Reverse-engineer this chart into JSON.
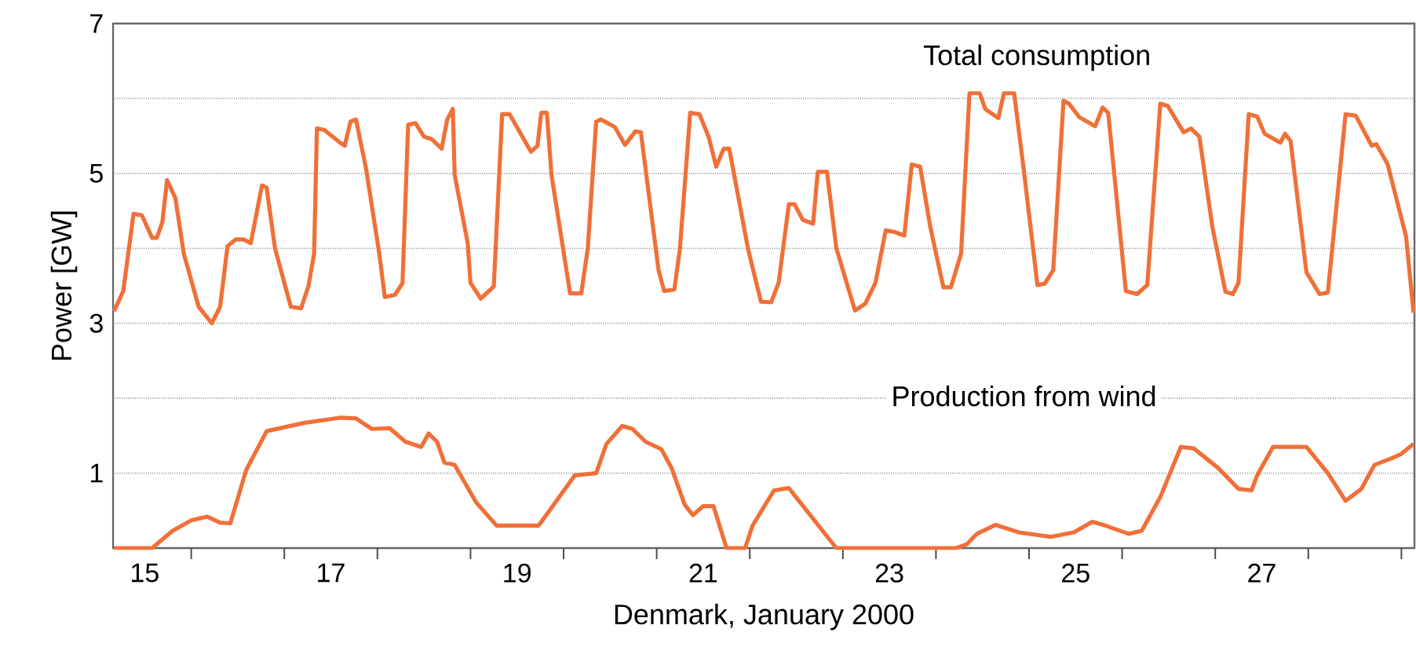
{
  "chart_data": {
    "type": "line",
    "xlabel": "Denmark, January 2000",
    "ylabel": "Power [GW]",
    "xlim": [
      14.66,
      28.64
    ],
    "ylim": [
      0,
      7
    ],
    "xticks": [
      15,
      {
        "value": 15.5,
        "label": null
      },
      {
        "value": 16.5,
        "label": null
      },
      17,
      {
        "value": 17.5,
        "label": null
      },
      {
        "value": 18.5,
        "label": null
      },
      19,
      {
        "value": 19.5,
        "label": null
      },
      {
        "value": 20.5,
        "label": null
      },
      21,
      {
        "value": 21.5,
        "label": null
      },
      {
        "value": 22.5,
        "label": null
      },
      23,
      {
        "value": 23.5,
        "label": null
      },
      {
        "value": 24.5,
        "label": null
      },
      25,
      {
        "value": 25.5,
        "label": null
      },
      {
        "value": 26.5,
        "label": null
      },
      27,
      {
        "value": 27.5,
        "label": null
      },
      {
        "value": 28.5,
        "label": null
      }
    ],
    "yticks": [
      1,
      {
        "value": 2,
        "label": null
      },
      3,
      {
        "value": 4,
        "label": null
      },
      5,
      {
        "value": 6,
        "label": null
      },
      7
    ],
    "grid": "y",
    "legend": false,
    "marker": "none",
    "line_style": "solid",
    "series": [
      {
        "name": "Total consumption",
        "color": "#f07038",
        "x": [
          14.67,
          14.77,
          14.88,
          14.97,
          15.08,
          15.13,
          15.19,
          15.24,
          15.33,
          15.42,
          15.58,
          15.72,
          15.81,
          15.89,
          15.98,
          16.06,
          16.14,
          16.26,
          16.31,
          16.4,
          16.57,
          16.68,
          16.76,
          16.82,
          16.85,
          16.93,
          17.1,
          17.15,
          17.21,
          17.27,
          17.38,
          17.52,
          17.58,
          17.69,
          17.77,
          17.83,
          17.91,
          18.0,
          18.08,
          18.19,
          18.25,
          18.31,
          18.33,
          18.47,
          18.5,
          18.61,
          18.75,
          18.84,
          18.92,
          19.15,
          19.22,
          19.26,
          19.32,
          19.37,
          19.57,
          19.69,
          19.76,
          19.85,
          19.9,
          20.05,
          20.16,
          20.27,
          20.33,
          20.52,
          20.58,
          20.69,
          20.75,
          20.86,
          20.96,
          21.06,
          21.14,
          21.22,
          21.28,
          21.48,
          21.62,
          21.73,
          21.81,
          21.92,
          21.98,
          22.07,
          22.18,
          22.23,
          22.33,
          22.43,
          22.63,
          22.74,
          22.85,
          22.96,
          23.05,
          23.16,
          23.24,
          23.33,
          23.44,
          23.58,
          23.66,
          23.77,
          23.86,
          23.97,
          24.03,
          24.17,
          24.23,
          24.34,
          24.45,
          24.59,
          24.67,
          24.76,
          24.87,
          24.93,
          25.04,
          25.21,
          25.29,
          25.35,
          25.54,
          25.66,
          25.77,
          25.91,
          25.99,
          26.16,
          26.24,
          26.33,
          26.47,
          26.61,
          26.69,
          26.75,
          26.86,
          26.95,
          27.03,
          27.2,
          27.25,
          27.31,
          27.48,
          27.62,
          27.71,
          27.9,
          28.01,
          28.18,
          28.23,
          28.29,
          28.35,
          28.55,
          28.63
        ],
        "values": [
          3.16,
          3.43,
          4.46,
          4.44,
          4.14,
          4.14,
          4.35,
          4.91,
          4.67,
          3.93,
          3.22,
          3.0,
          3.22,
          4.03,
          4.12,
          4.12,
          4.07,
          4.84,
          4.81,
          4.0,
          3.22,
          3.2,
          3.5,
          3.93,
          5.6,
          5.58,
          5.41,
          5.37,
          5.69,
          5.72,
          5.05,
          3.93,
          3.35,
          3.38,
          3.54,
          5.65,
          5.67,
          5.49,
          5.46,
          5.33,
          5.72,
          5.86,
          4.98,
          4.07,
          3.54,
          3.33,
          3.49,
          5.79,
          5.79,
          5.29,
          5.37,
          5.81,
          5.81,
          4.98,
          3.4,
          3.4,
          4.0,
          5.69,
          5.72,
          5.62,
          5.38,
          5.56,
          5.55,
          3.71,
          3.43,
          3.45,
          4.0,
          5.81,
          5.79,
          5.48,
          5.09,
          5.33,
          5.33,
          4.0,
          3.29,
          3.28,
          3.54,
          4.59,
          4.59,
          4.38,
          4.33,
          5.02,
          5.02,
          4.0,
          3.17,
          3.26,
          3.54,
          4.24,
          4.22,
          4.17,
          5.12,
          5.09,
          4.28,
          3.48,
          3.48,
          3.93,
          6.07,
          6.07,
          5.86,
          5.74,
          6.07,
          6.07,
          4.98,
          3.51,
          3.53,
          3.71,
          5.97,
          5.93,
          5.75,
          5.63,
          5.88,
          5.81,
          3.43,
          3.39,
          3.51,
          5.93,
          5.9,
          5.55,
          5.6,
          5.49,
          4.28,
          3.42,
          3.39,
          3.54,
          5.79,
          5.76,
          5.53,
          5.41,
          5.53,
          5.43,
          3.68,
          3.39,
          3.41,
          5.79,
          5.77,
          5.37,
          5.39,
          5.26,
          5.13,
          4.16,
          3.14
        ]
      },
      {
        "name": "Production from wind",
        "color": "#f07038",
        "x": [
          14.67,
          15.08,
          15.3,
          15.5,
          15.67,
          15.81,
          15.92,
          16.09,
          16.31,
          16.71,
          17.1,
          17.27,
          17.44,
          17.63,
          17.8,
          17.97,
          18.05,
          18.14,
          18.22,
          18.33,
          18.56,
          18.78,
          19.23,
          19.29,
          19.62,
          19.85,
          19.96,
          20.13,
          20.24,
          20.38,
          20.55,
          20.66,
          20.8,
          20.89,
          21.0,
          21.11,
          21.25,
          21.45,
          21.53,
          21.76,
          21.92,
          22.43,
          23.72,
          23.83,
          23.94,
          24.14,
          24.39,
          24.73,
          24.98,
          25.18,
          25.32,
          25.57,
          25.71,
          25.91,
          26.13,
          26.27,
          26.53,
          26.75,
          26.89,
          26.95,
          27.12,
          27.48,
          27.71,
          27.9,
          28.07,
          28.21,
          28.38,
          28.49,
          28.63
        ],
        "values": [
          0,
          0,
          0.23,
          0.37,
          0.42,
          0.34,
          0.33,
          1.04,
          1.56,
          1.67,
          1.74,
          1.73,
          1.59,
          1.6,
          1.42,
          1.35,
          1.53,
          1.42,
          1.14,
          1.11,
          0.61,
          0.3,
          0.3,
          0.4,
          0.97,
          1.0,
          1.39,
          1.63,
          1.59,
          1.42,
          1.32,
          1.07,
          0.58,
          0.44,
          0.56,
          0.56,
          0,
          0,
          0.3,
          0.77,
          0.8,
          0,
          0,
          0.05,
          0.19,
          0.31,
          0.21,
          0.15,
          0.21,
          0.35,
          0.3,
          0.19,
          0.23,
          0.68,
          1.35,
          1.33,
          1.07,
          0.79,
          0.77,
          0.97,
          1.35,
          1.35,
          1.0,
          0.63,
          0.79,
          1.11,
          1.19,
          1.25,
          1.39
        ]
      }
    ]
  }
}
